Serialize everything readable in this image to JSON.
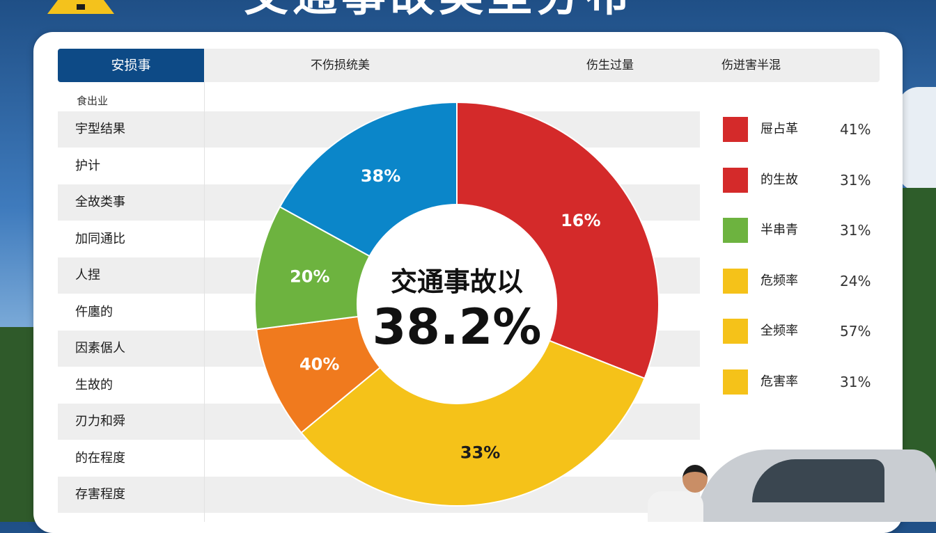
{
  "header": {
    "title": "交通事故类型分布",
    "active_tab": "安损事",
    "columns": [
      "不伤损统美",
      "伤生过量",
      "伤迸害半混"
    ]
  },
  "left_panel": {
    "subheader": "食出业",
    "rows": [
      "宇型结果",
      "护计",
      "全故类事",
      "加同通比",
      "人捏",
      "仵廛的",
      "因素倨人",
      "生故的",
      "刃力和舜",
      "的在程度",
      "存害程度"
    ]
  },
  "donut_center": {
    "label": "交通事故以",
    "value": "38.2%"
  },
  "colors": {
    "red": "#d42a2a",
    "yellow": "#f5c219",
    "orange": "#f07a1e",
    "green": "#6db33f",
    "blue": "#0b86c9",
    "panel_header": "#0d4a86"
  },
  "chart_data": {
    "type": "pie",
    "slices": [
      {
        "label": "16%",
        "value": 31,
        "color": "#d42a2a"
      },
      {
        "label": "33%",
        "value": 33,
        "color": "#f5c219"
      },
      {
        "label": "40%",
        "value": 9,
        "color": "#f07a1e"
      },
      {
        "label": "20%",
        "value": 10,
        "color": "#6db33f"
      },
      {
        "label": "38%",
        "value": 17,
        "color": "#0b86c9"
      }
    ]
  },
  "legend": [
    {
      "label": "屉占革",
      "value": "41%",
      "color": "#d42a2a"
    },
    {
      "label": "的生故",
      "value": "31%",
      "color": "#d42a2a"
    },
    {
      "label": "半串青",
      "value": "31%",
      "color": "#6db33f"
    },
    {
      "label": "危频率",
      "value": "24%",
      "color": "#f5c219"
    },
    {
      "label": "全频率",
      "value": "57%",
      "color": "#f5c219"
    },
    {
      "label": "危害率",
      "value": "31%",
      "color": "#f5c219"
    }
  ]
}
